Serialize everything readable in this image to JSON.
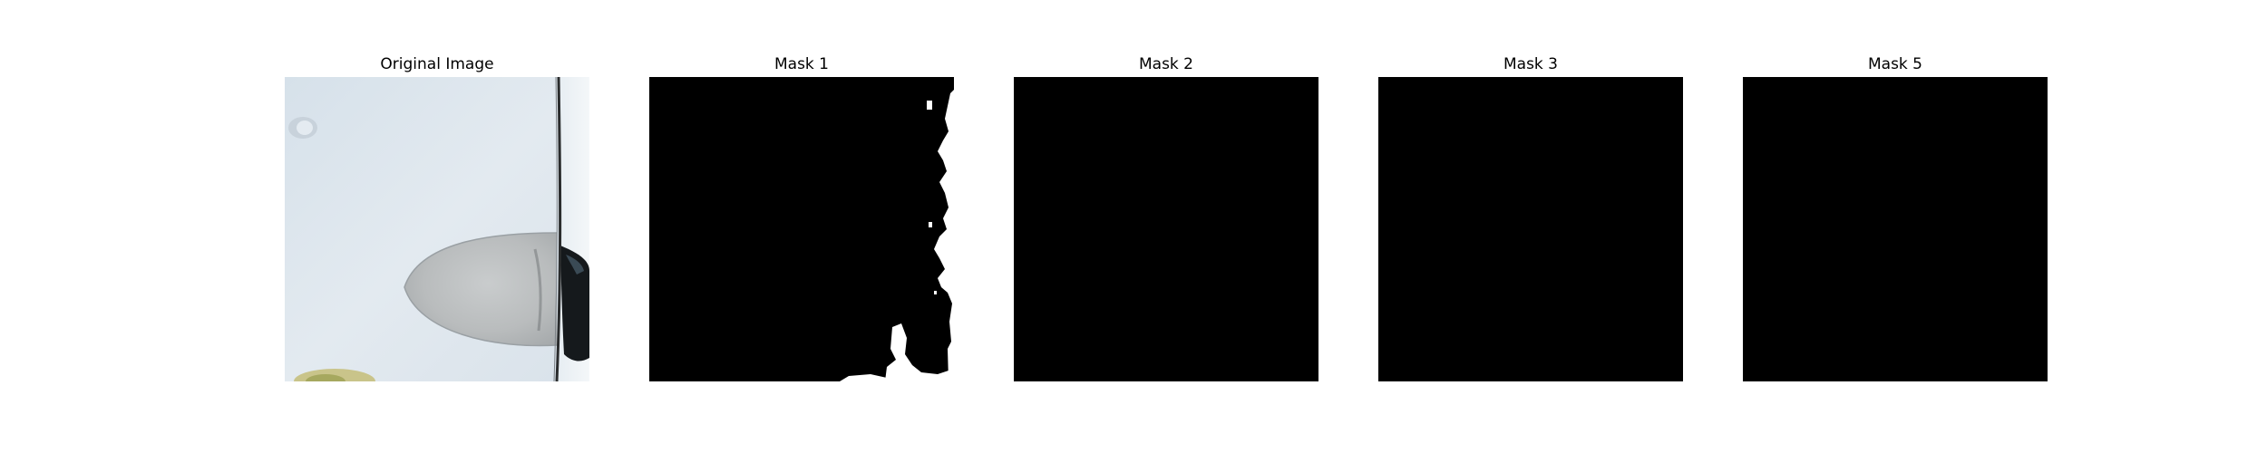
{
  "panels": [
    {
      "title": "Original Image",
      "kind": "photo"
    },
    {
      "title": "Mask 1",
      "kind": "mask",
      "mask_content": "partial"
    },
    {
      "title": "Mask 2",
      "kind": "mask",
      "mask_content": "empty"
    },
    {
      "title": "Mask 3",
      "kind": "mask",
      "mask_content": "empty"
    },
    {
      "title": "Mask 5",
      "kind": "mask",
      "mask_content": "empty"
    }
  ],
  "colors": {
    "background": "#ffffff",
    "mask_background": "#000000",
    "mask_foreground": "#ffffff",
    "photo_surface": "#dde6ee"
  }
}
